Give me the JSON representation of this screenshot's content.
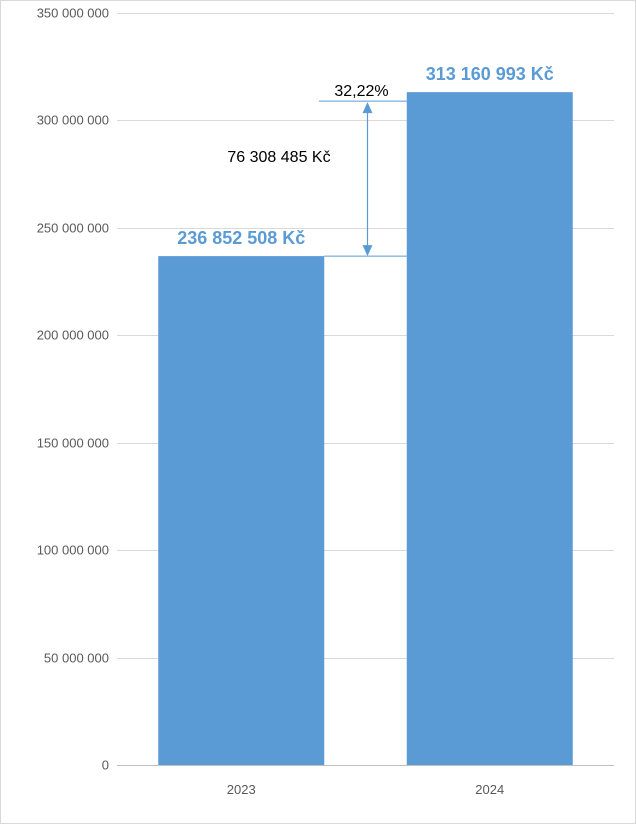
{
  "chart_data": {
    "type": "bar",
    "categories": [
      "2023",
      "2024"
    ],
    "values": [
      236852508,
      313160993
    ],
    "data_labels": [
      "236 852 508 Kč",
      "313 160 993 Kč"
    ],
    "ylim": [
      0,
      350000000
    ],
    "y_ticks": [
      0,
      50000000,
      100000000,
      150000000,
      200000000,
      250000000,
      300000000,
      350000000
    ],
    "y_tick_labels": [
      "0",
      "50 000 000",
      "100 000 000",
      "150 000 000",
      "200 000 000",
      "250 000 000",
      "300 000 000",
      "350 000 000"
    ],
    "grid": true,
    "bar_color": "#5b9bd5",
    "label_color": "#5b9bd5",
    "annotation": {
      "difference": 76308485,
      "difference_label": "76 308 485 Kč",
      "percent_label": "32,22%",
      "color": "#5b9bd5"
    }
  }
}
